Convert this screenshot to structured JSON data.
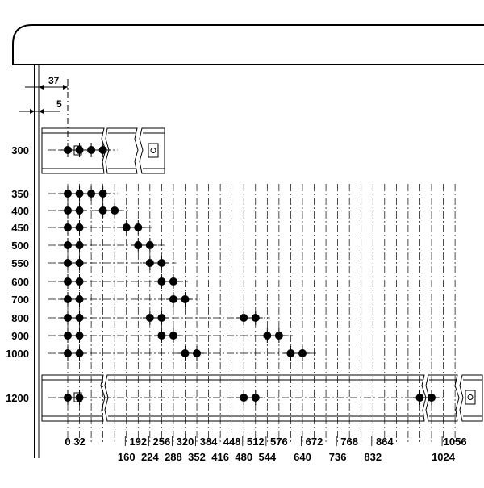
{
  "dimensions": {
    "total_label": "37",
    "offset_label": "5"
  },
  "row_labels": [
    "300",
    "350",
    "400",
    "450",
    "500",
    "550",
    "600",
    "700",
    "800",
    "900",
    "1000",
    "1200"
  ],
  "bottom_labels_top": [
    "0",
    "32",
    "192",
    "256",
    "320",
    "384",
    "448",
    "512",
    "576",
    "672",
    "768",
    "864",
    "1056"
  ],
  "bottom_labels_bottom": [
    "160",
    "224",
    "288",
    "352",
    "416",
    "480",
    "544",
    "640",
    "736",
    "832",
    "1024"
  ],
  "hole_rows": [
    {
      "row": "300",
      "holes": [
        "0",
        "32",
        "64",
        "96"
      ]
    },
    {
      "row": "350",
      "holes": [
        "0",
        "32",
        "64",
        "96"
      ]
    },
    {
      "row": "400",
      "holes": [
        "0",
        "32",
        "96",
        "128"
      ]
    },
    {
      "row": "450",
      "holes": [
        "0",
        "32",
        "160",
        "192"
      ]
    },
    {
      "row": "500",
      "holes": [
        "0",
        "32",
        "192",
        "224"
      ]
    },
    {
      "row": "550",
      "holes": [
        "0",
        "32",
        "224",
        "256"
      ]
    },
    {
      "row": "600",
      "holes": [
        "0",
        "32",
        "256",
        "288"
      ]
    },
    {
      "row": "700",
      "holes": [
        "0",
        "32",
        "288",
        "320"
      ]
    },
    {
      "row": "800",
      "holes": [
        "0",
        "32",
        "224",
        "256",
        "480",
        "512"
      ]
    },
    {
      "row": "900",
      "holes": [
        "0",
        "32",
        "256",
        "288",
        "544",
        "576"
      ]
    },
    {
      "row": "1000",
      "holes": [
        "0",
        "32",
        "320",
        "352",
        "608",
        "640"
      ]
    },
    {
      "row": "1200",
      "holes": [
        "0",
        "32",
        "480",
        "512",
        "960",
        "992"
      ]
    }
  ]
}
